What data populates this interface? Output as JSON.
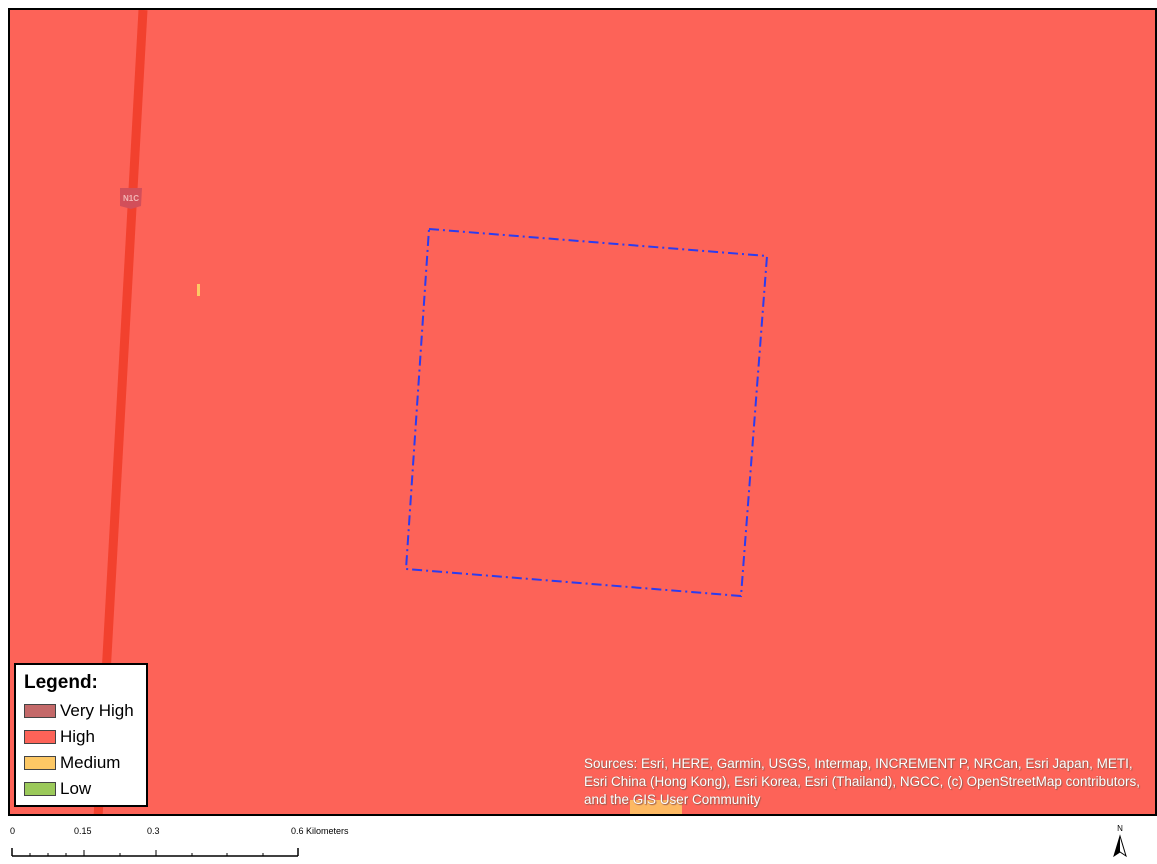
{
  "colors": {
    "map_background": "#fd6358",
    "road": "#f2412e",
    "study_area_outline": "#2b3cf0"
  },
  "map": {
    "road_shield_label": "N1C"
  },
  "legend": {
    "title": "Legend:",
    "items": [
      {
        "label": "Very High",
        "color": "#c46969"
      },
      {
        "label": "High",
        "color": "#fd6358"
      },
      {
        "label": "Medium",
        "color": "#fdc865"
      },
      {
        "label": "Low",
        "color": "#9bc95a"
      }
    ]
  },
  "attribution": {
    "text": "Sources: Esri, HERE, Garmin, USGS, Intermap, INCREMENT P, NRCan, Esri Japan, METI, Esri China (Hong Kong), Esri Korea, Esri (Thailand), NGCC, (c) OpenStreetMap contributors, and the GIS User Community"
  },
  "scale_bar": {
    "labels": [
      "0",
      "0.15",
      "0.3",
      "0.6 Kilometers"
    ]
  },
  "north_arrow": {
    "letter": "N"
  }
}
